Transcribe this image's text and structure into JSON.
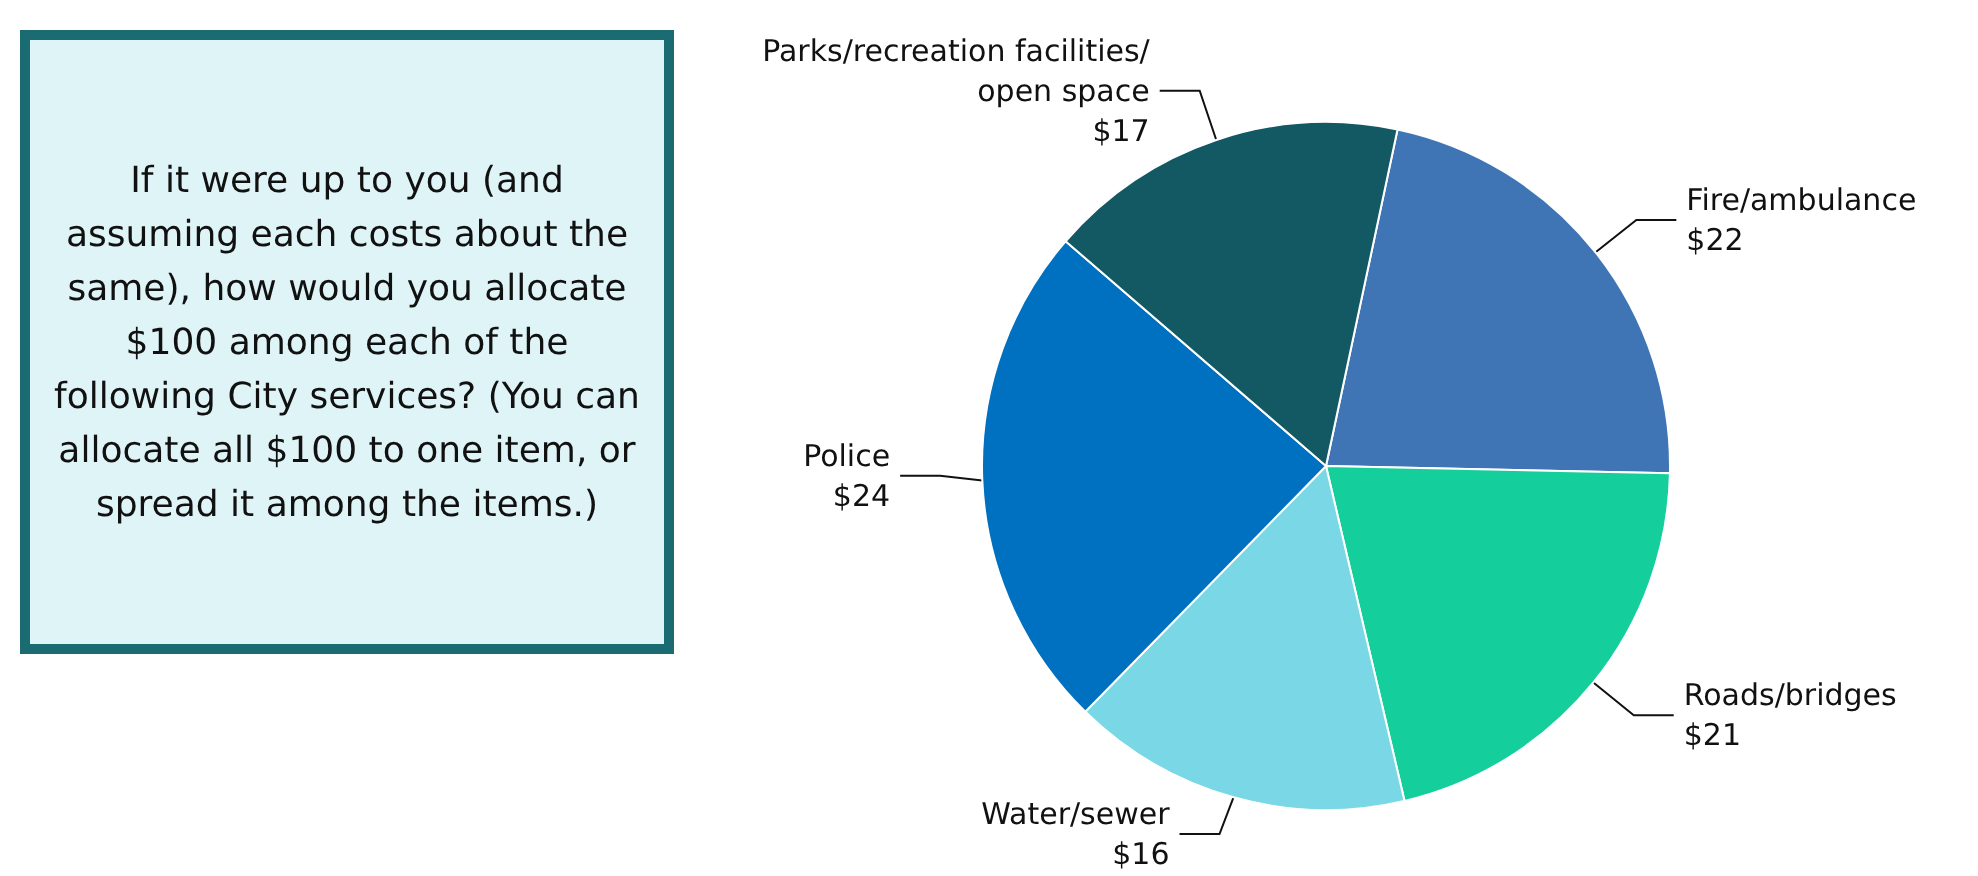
{
  "chart_data": {
    "type": "pie",
    "categories": [
      "Fire/ambulance",
      "Roads/bridges",
      "Water/sewer",
      "Police",
      "Parks/recreation facilities/open space"
    ],
    "values": [
      22,
      21,
      16,
      24,
      17
    ],
    "value_labels": [
      "$22",
      "$21",
      "$16",
      "$24",
      "$17"
    ],
    "colors": [
      "#3f74b5",
      "#14cf9c",
      "#7ad8e6",
      "#0070c0",
      "#135963"
    ],
    "annotations": [
      "If it were up to you (and assuming each costs about the same), how would you allocate $100 among each of the following City services? (You can allocate all $100 to one item, or spread it among the items.)"
    ],
    "legend": false
  }
}
